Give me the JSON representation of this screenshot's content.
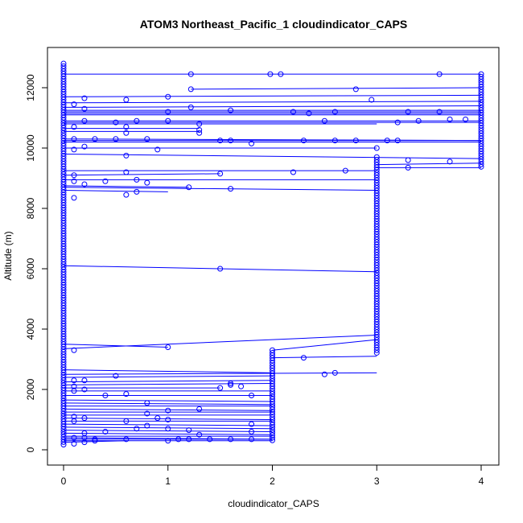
{
  "chart_data": {
    "type": "scatter",
    "title": "ATOM3 Northeast_Pacific_1 cloudindicator_CAPS",
    "xlabel": "cloudindicator_CAPS",
    "ylabel": "Altitude (m)",
    "xlim": [
      0,
      4
    ],
    "ylim": [
      0,
      12800
    ],
    "x_ticks": [
      0,
      1,
      2,
      3,
      4
    ],
    "y_ticks": [
      0,
      2000,
      4000,
      6000,
      8000,
      10000,
      12000
    ],
    "grid": false,
    "legend": "none",
    "color": "#0000ff",
    "columns": {
      "x0": {
        "x": 0,
        "y_min": 150,
        "y_max": 12800
      },
      "x2": {
        "x": 2,
        "y_min": 300,
        "y_max": 3300
      },
      "x3": {
        "x": 3,
        "y_min": 3200,
        "y_max": 9700
      },
      "x4": {
        "x": 4,
        "y_min": 9350,
        "y_max": 12450
      }
    },
    "points": [
      [
        1.22,
        12450
      ],
      [
        1.98,
        12450
      ],
      [
        2.08,
        12450
      ],
      [
        3.6,
        12450
      ],
      [
        1.22,
        11950
      ],
      [
        2.8,
        11950
      ],
      [
        0.2,
        11650
      ],
      [
        0.6,
        11600
      ],
      [
        1.0,
        11700
      ],
      [
        2.95,
        11600
      ],
      [
        0.1,
        11450
      ],
      [
        0.2,
        11300
      ],
      [
        1.0,
        11200
      ],
      [
        1.22,
        11350
      ],
      [
        1.6,
        11250
      ],
      [
        2.6,
        11200
      ],
      [
        3.6,
        11200
      ],
      [
        2.35,
        11150
      ],
      [
        2.2,
        11200
      ],
      [
        3.3,
        11200
      ],
      [
        0.2,
        10900
      ],
      [
        0.5,
        10850
      ],
      [
        0.7,
        10900
      ],
      [
        1.0,
        10900
      ],
      [
        1.3,
        10800
      ],
      [
        2.5,
        10900
      ],
      [
        3.2,
        10850
      ],
      [
        3.4,
        10900
      ],
      [
        3.7,
        10950
      ],
      [
        3.85,
        10950
      ],
      [
        0.1,
        10700
      ],
      [
        0.6,
        10700
      ],
      [
        1.3,
        10600
      ],
      [
        0.6,
        10500
      ],
      [
        1.3,
        10500
      ],
      [
        0.1,
        10300
      ],
      [
        0.3,
        10300
      ],
      [
        0.5,
        10300
      ],
      [
        0.8,
        10300
      ],
      [
        1.5,
        10250
      ],
      [
        1.6,
        10250
      ],
      [
        2.3,
        10250
      ],
      [
        2.6,
        10250
      ],
      [
        2.8,
        10250
      ],
      [
        3.1,
        10250
      ],
      [
        3.2,
        10250
      ],
      [
        0.2,
        10050
      ],
      [
        0.1,
        9950
      ],
      [
        0.9,
        9950
      ],
      [
        1.8,
        10150
      ],
      [
        3.0,
        10000
      ],
      [
        0.6,
        9750
      ],
      [
        3.3,
        9600
      ],
      [
        3.7,
        9550
      ],
      [
        0.1,
        9100
      ],
      [
        0.6,
        9200
      ],
      [
        1.5,
        9150
      ],
      [
        2.2,
        9200
      ],
      [
        2.7,
        9250
      ],
      [
        3.3,
        9350
      ],
      [
        0.1,
        8900
      ],
      [
        0.2,
        8800
      ],
      [
        0.4,
        8900
      ],
      [
        0.7,
        8950
      ],
      [
        0.8,
        8850
      ],
      [
        1.2,
        8700
      ],
      [
        1.6,
        8650
      ],
      [
        0.1,
        8350
      ],
      [
        0.6,
        8450
      ],
      [
        0.7,
        8550
      ],
      [
        1.5,
        6000
      ],
      [
        1.0,
        3400
      ],
      [
        0.1,
        3300
      ],
      [
        2.3,
        3050
      ],
      [
        2.5,
        2500
      ],
      [
        2.6,
        2550
      ],
      [
        0.5,
        2450
      ],
      [
        1.6,
        2200
      ],
      [
        1.6,
        2150
      ],
      [
        1.7,
        2100
      ],
      [
        1.5,
        2050
      ],
      [
        0.1,
        2300
      ],
      [
        0.2,
        2300
      ],
      [
        0.1,
        2100
      ],
      [
        0.2,
        2000
      ],
      [
        0.1,
        1950
      ],
      [
        0.4,
        1800
      ],
      [
        0.6,
        1850
      ],
      [
        1.8,
        1800
      ],
      [
        0.8,
        1550
      ],
      [
        1.0,
        1300
      ],
      [
        1.3,
        1350
      ],
      [
        0.9,
        1050
      ],
      [
        1.0,
        1000
      ],
      [
        0.1,
        1100
      ],
      [
        0.2,
        1050
      ],
      [
        0.1,
        950
      ],
      [
        0.6,
        950
      ],
      [
        0.8,
        1200
      ],
      [
        0.8,
        800
      ],
      [
        0.7,
        700
      ],
      [
        1.0,
        700
      ],
      [
        1.8,
        850
      ],
      [
        1.2,
        650
      ],
      [
        1.8,
        600
      ],
      [
        0.4,
        600
      ],
      [
        0.2,
        550
      ],
      [
        0.1,
        400
      ],
      [
        0.2,
        400
      ],
      [
        0.3,
        350
      ],
      [
        0.6,
        350
      ],
      [
        1.0,
        300
      ],
      [
        1.1,
        350
      ],
      [
        1.2,
        350
      ],
      [
        1.4,
        350
      ],
      [
        1.6,
        350
      ],
      [
        1.8,
        350
      ],
      [
        0.2,
        250
      ],
      [
        0.1,
        200
      ],
      [
        0.3,
        300
      ],
      [
        1.3,
        500
      ]
    ],
    "segments": [
      [
        0,
        12450,
        4,
        12450
      ],
      [
        1.22,
        11950,
        4,
        12000
      ],
      [
        0,
        11700,
        4,
        11750
      ],
      [
        0,
        11500,
        4,
        11550
      ],
      [
        0,
        11350,
        4,
        11400
      ],
      [
        0,
        11250,
        4,
        11250
      ],
      [
        0,
        11200,
        4,
        11200
      ],
      [
        0,
        11150,
        4,
        11150
      ],
      [
        0,
        11100,
        4,
        11100
      ],
      [
        0,
        10900,
        4,
        10900
      ],
      [
        0,
        10850,
        4,
        10850
      ],
      [
        0,
        10800,
        3,
        10800
      ],
      [
        0,
        10650,
        1.3,
        10650
      ],
      [
        0,
        10550,
        1.3,
        10550
      ],
      [
        0,
        10300,
        4,
        10250
      ],
      [
        0,
        10250,
        4,
        10250
      ],
      [
        0,
        10200,
        4,
        10200
      ],
      [
        0,
        10000,
        3,
        10000
      ],
      [
        0,
        9800,
        4,
        9650
      ],
      [
        3,
        9450,
        4,
        9500
      ],
      [
        0,
        9250,
        3,
        9250
      ],
      [
        3,
        9350,
        4,
        9350
      ],
      [
        0,
        9100,
        1.5,
        9150
      ],
      [
        0,
        8950,
        3,
        8950
      ],
      [
        0,
        8750,
        1.2,
        8700
      ],
      [
        0,
        8700,
        3,
        8600
      ],
      [
        0,
        8600,
        1.0,
        8550
      ],
      [
        0,
        6100,
        3,
        5900
      ],
      [
        0,
        3500,
        1.0,
        3400
      ],
      [
        0,
        3350,
        3,
        3800
      ],
      [
        2,
        3300,
        3,
        3650
      ],
      [
        2,
        3050,
        3,
        3100
      ],
      [
        0,
        2650,
        2,
        2550
      ],
      [
        0,
        2500,
        3,
        2550
      ],
      [
        0,
        2400,
        2,
        2450
      ],
      [
        0,
        2250,
        2,
        2300
      ],
      [
        0,
        2150,
        2,
        2200
      ],
      [
        0,
        2050,
        1.5,
        2050
      ],
      [
        0,
        1950,
        2,
        1950
      ],
      [
        0,
        1800,
        2,
        1800
      ],
      [
        0,
        1650,
        2,
        1600
      ],
      [
        0,
        1550,
        2,
        1500
      ],
      [
        0,
        1450,
        2,
        1450
      ],
      [
        0,
        1350,
        2,
        1300
      ],
      [
        0,
        1250,
        2,
        1250
      ],
      [
        0,
        1150,
        2,
        1150
      ],
      [
        0,
        1050,
        2,
        1000
      ],
      [
        0,
        950,
        2,
        950
      ],
      [
        0,
        850,
        2,
        800
      ],
      [
        0,
        750,
        2,
        700
      ],
      [
        0,
        650,
        2,
        600
      ],
      [
        0,
        550,
        2,
        500
      ],
      [
        0,
        450,
        2,
        450
      ],
      [
        0,
        400,
        2,
        350
      ],
      [
        0,
        350,
        2,
        350
      ],
      [
        0,
        300,
        2,
        300
      ],
      [
        0,
        250,
        0.6,
        300
      ]
    ]
  }
}
